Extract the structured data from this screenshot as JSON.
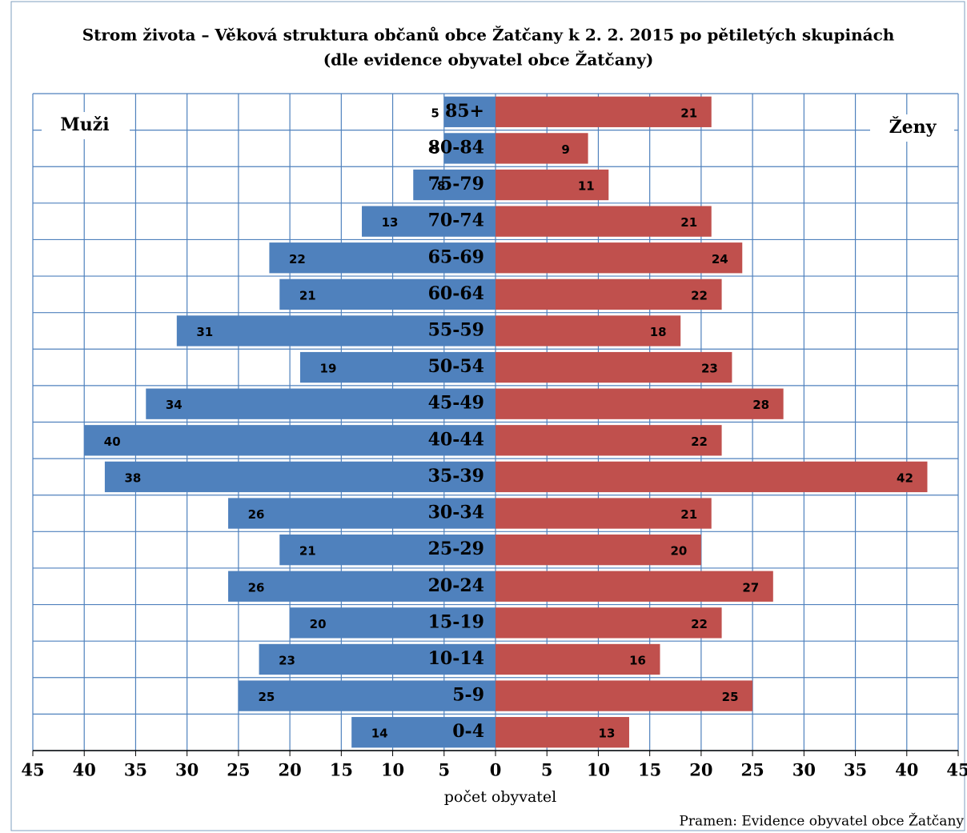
{
  "chart_data": {
    "type": "pyramid",
    "title": "Strom života – Věková struktura občanů obce Žatčany k 2. 2. 2015 po pětiletých skupinách",
    "subtitle": "(dle evidence obyvatel obce Žatčany)",
    "x_label": "počet obyvatel",
    "source": "Pramen: Evidence obyvatel obce Žatčany",
    "categories": [
      "85+",
      "80-84",
      "75-79",
      "70-74",
      "65-69",
      "60-64",
      "55-59",
      "50-54",
      "45-49",
      "40-44",
      "35-39",
      "30-34",
      "25-29",
      "20-24",
      "15-19",
      "10-14",
      "5-9",
      "0-4"
    ],
    "series": [
      {
        "name": "Muži",
        "color": "#4f81bd",
        "values": [
          5,
          5,
          8,
          13,
          22,
          21,
          31,
          19,
          34,
          40,
          38,
          26,
          21,
          26,
          20,
          23,
          25,
          14
        ]
      },
      {
        "name": "Ženy",
        "color": "#c0504d",
        "values": [
          21,
          9,
          11,
          21,
          24,
          22,
          18,
          23,
          28,
          22,
          42,
          21,
          20,
          27,
          22,
          16,
          25,
          13
        ]
      }
    ],
    "xlim": [
      -45,
      45
    ],
    "xticks": [
      {
        "value": -45,
        "label": "45"
      },
      {
        "value": -40,
        "label": "40"
      },
      {
        "value": -35,
        "label": "35"
      },
      {
        "value": -30,
        "label": "30"
      },
      {
        "value": -25,
        "label": "25"
      },
      {
        "value": -20,
        "label": "20"
      },
      {
        "value": -15,
        "label": "15"
      },
      {
        "value": -10,
        "label": "10"
      },
      {
        "value": -5,
        "label": "5"
      },
      0,
      5,
      10,
      15,
      20,
      25,
      30,
      35,
      40,
      45
    ],
    "grid": true
  }
}
